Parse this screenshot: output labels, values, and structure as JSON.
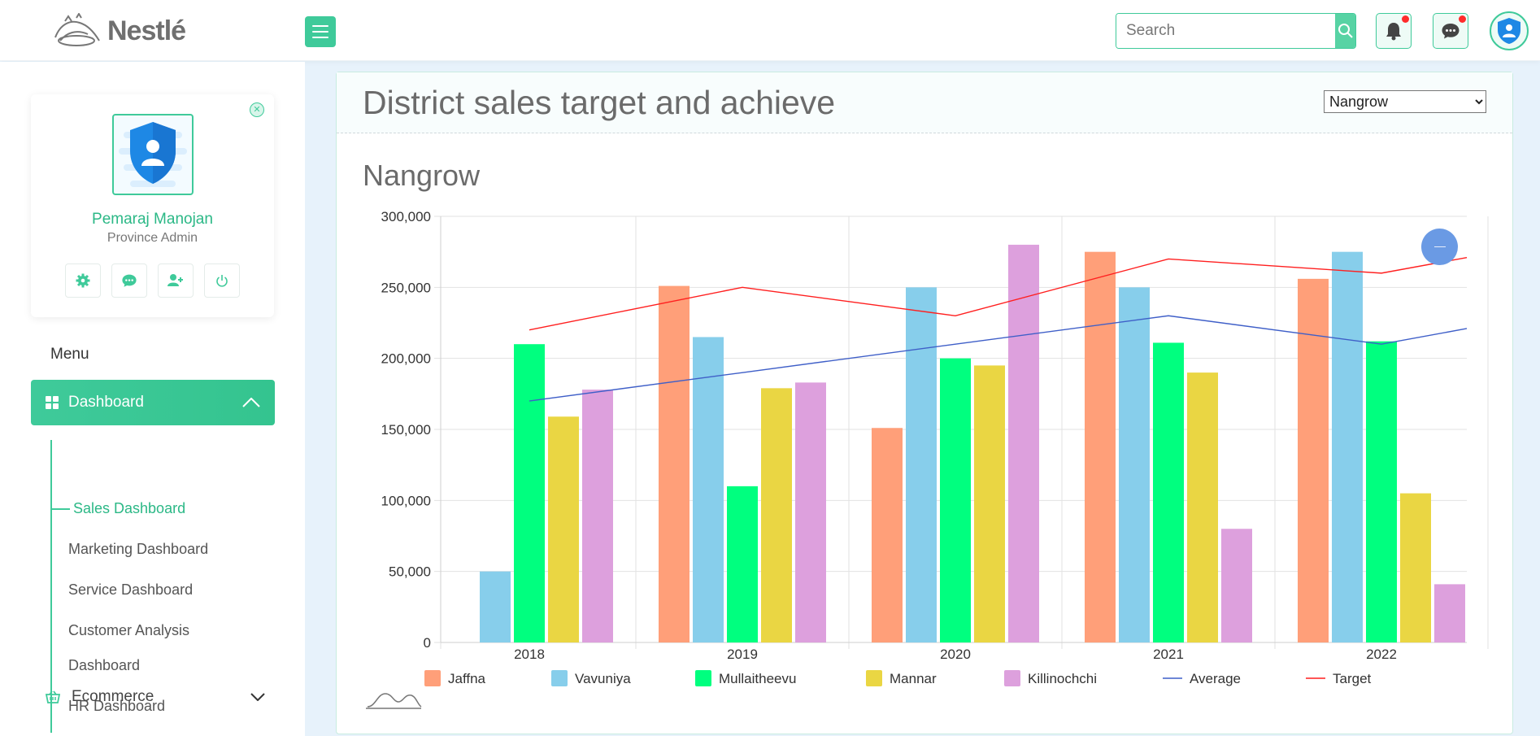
{
  "brand": {
    "name": "Nestlé"
  },
  "header": {
    "search": {
      "placeholder": "Search",
      "value": ""
    },
    "notifications": {
      "has_unread": true
    },
    "messages": {
      "has_unread": true
    }
  },
  "profile": {
    "name": "Pemaraj Manojan",
    "role": "Province Admin"
  },
  "menu": {
    "title": "Menu",
    "dashboard": {
      "label": "Dashboard",
      "expanded": true
    },
    "sub_items": [
      {
        "label": "Sales Dashboard",
        "active": true
      },
      {
        "label": "Marketing Dashboard",
        "active": false
      },
      {
        "label": "Service Dashboard",
        "active": false
      },
      {
        "label": "Customer Analysis",
        "active": false
      },
      {
        "label": "Dashboard",
        "active": false
      },
      {
        "label": "HR Dashboard",
        "active": false
      }
    ],
    "ecommerce": {
      "label": "Ecommerce",
      "expanded": false
    }
  },
  "card": {
    "title": "District sales target and achieve",
    "selected_district": "Nangrow",
    "district_options": [
      "Nangrow"
    ]
  },
  "chart_data": {
    "type": "bar",
    "title": "Nangrow",
    "categories": [
      "2018",
      "2019",
      "2020",
      "2021",
      "2022"
    ],
    "y_ticks": [
      "0",
      "50,000",
      "100,000",
      "150,000",
      "200,000",
      "250,000",
      "300,000"
    ],
    "ylim": [
      0,
      300000
    ],
    "grid": true,
    "legend_position": "bottom",
    "series": [
      {
        "name": "Jaffna",
        "type": "bar",
        "color": "#ff9f79",
        "values": [
          0,
          251000,
          151000,
          275000,
          256000
        ]
      },
      {
        "name": "Vavuniya",
        "type": "bar",
        "color": "#87ceeb",
        "values": [
          50000,
          215000,
          250000,
          250000,
          275000
        ]
      },
      {
        "name": "Mullaitheevu",
        "type": "bar",
        "color": "#00ff7f",
        "values": [
          210000,
          110000,
          200000,
          211000,
          212000
        ]
      },
      {
        "name": "Mannar",
        "type": "bar",
        "color": "#ead643",
        "values": [
          159000,
          179000,
          195000,
          190000,
          105000
        ]
      },
      {
        "name": "Killinochchi",
        "type": "bar",
        "color": "#dda0dd",
        "values": [
          178000,
          183000,
          280000,
          80000,
          41000
        ]
      },
      {
        "name": "Average",
        "type": "line",
        "color": "#3f5fc8",
        "values": [
          170000,
          190000,
          210000,
          230000,
          210000
        ],
        "end_value": 221000
      },
      {
        "name": "Target",
        "type": "line",
        "color": "#ff1f1f",
        "values": [
          220000,
          250000,
          230000,
          270000,
          260000
        ],
        "end_value": 271000
      }
    ]
  },
  "colors": {
    "accent": "#3fca9a",
    "badge": "#ff2b2b",
    "page_bg": "#e7f2fb"
  }
}
